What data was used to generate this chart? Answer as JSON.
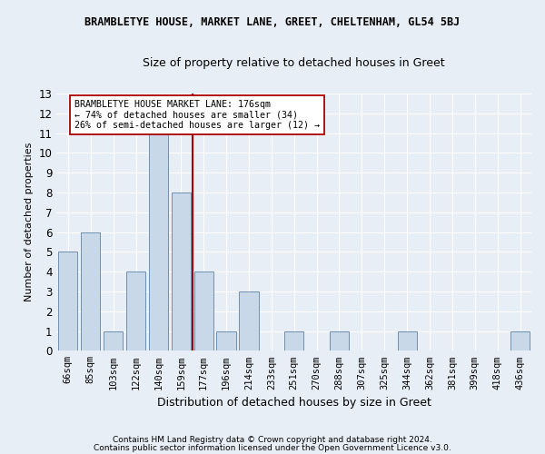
{
  "title": "BRAMBLETYE HOUSE, MARKET LANE, GREET, CHELTENHAM, GL54 5BJ",
  "subtitle": "Size of property relative to detached houses in Greet",
  "xlabel": "Distribution of detached houses by size in Greet",
  "ylabel": "Number of detached properties",
  "categories": [
    "66sqm",
    "85sqm",
    "103sqm",
    "122sqm",
    "140sqm",
    "159sqm",
    "177sqm",
    "196sqm",
    "214sqm",
    "233sqm",
    "251sqm",
    "270sqm",
    "288sqm",
    "307sqm",
    "325sqm",
    "344sqm",
    "362sqm",
    "381sqm",
    "399sqm",
    "418sqm",
    "436sqm"
  ],
  "values": [
    5,
    6,
    1,
    4,
    11,
    8,
    4,
    1,
    3,
    0,
    1,
    0,
    1,
    0,
    0,
    1,
    0,
    0,
    0,
    0,
    1
  ],
  "bar_color": "#c8d8e8",
  "bar_edge_color": "#7090b0",
  "ylim": [
    0,
    13
  ],
  "yticks": [
    0,
    1,
    2,
    3,
    4,
    5,
    6,
    7,
    8,
    9,
    10,
    11,
    12,
    13
  ],
  "vline_x_index": 5.5,
  "vline_color": "#aa0000",
  "annotation_text": "BRAMBLETYE HOUSE MARKET LANE: 176sqm\n← 74% of detached houses are smaller (34)\n26% of semi-detached houses are larger (12) →",
  "annotation_box_color": "#ffffff",
  "annotation_box_edge_color": "#aa0000",
  "footer1": "Contains HM Land Registry data © Crown copyright and database right 2024.",
  "footer2": "Contains public sector information licensed under the Open Government Licence v3.0.",
  "background_color": "#e8eef5",
  "grid_color": "#ffffff"
}
